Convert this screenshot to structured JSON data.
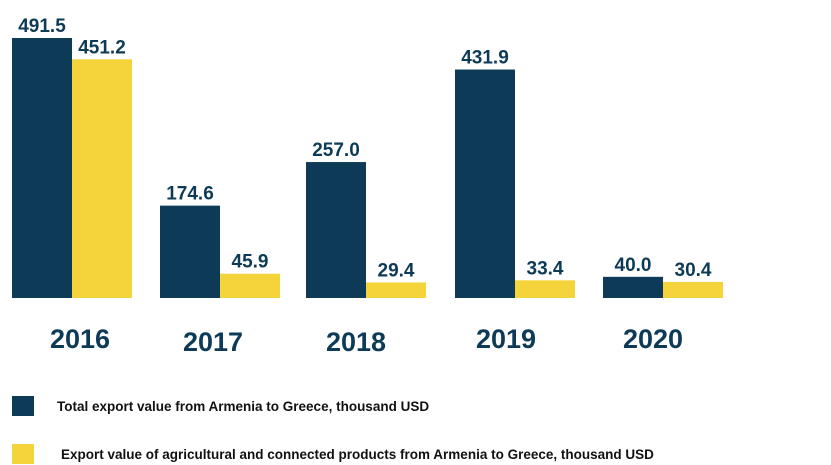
{
  "chart_data": {
    "type": "bar",
    "categories": [
      "2016",
      "2017",
      "2018",
      "2019",
      "2020"
    ],
    "series": [
      {
        "name": "Total export value from Armenia to Greece, thousand USD",
        "values": [
          491.5,
          174.6,
          257.0,
          431.9,
          40.0
        ],
        "labels": [
          "491.5",
          "174.6",
          "257.0",
          "431.9",
          "40.0"
        ],
        "color": "#0d3b57"
      },
      {
        "name": "Export value of agricultural and connected products from Armenia to Greece, thousand USD",
        "values": [
          451.2,
          45.9,
          29.4,
          33.4,
          30.4
        ],
        "labels": [
          "451.2",
          "45.9",
          "29.4",
          "33.4",
          "30.4"
        ],
        "color": "#f5d33a"
      }
    ],
    "ylim": [
      0,
      491.5
    ],
    "grid": false,
    "legend_position": "bottom"
  }
}
